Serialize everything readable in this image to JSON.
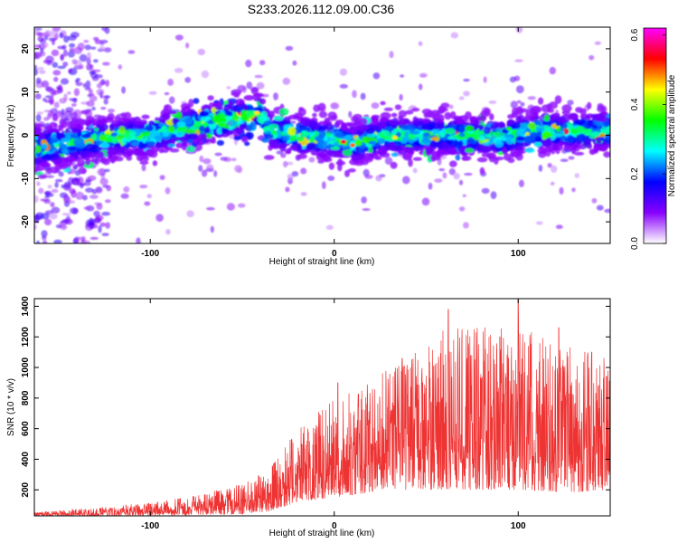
{
  "chart_data": [
    {
      "type": "heatmap",
      "title": "S233.2026.112.09.00.C36",
      "xlabel": "Height of straight line (km)",
      "ylabel": "Frequency (Hz)",
      "xlim": [
        -163,
        150
      ],
      "ylim": [
        -25,
        25
      ],
      "x_ticks": [
        -100,
        0,
        100
      ],
      "x_tick_labels": [
        "-100",
        "0",
        "100"
      ],
      "y_ticks": [
        -20,
        -10,
        0,
        10,
        20
      ],
      "y_tick_labels": [
        "-20",
        "-10",
        "0",
        "10",
        "20"
      ],
      "colorbar": {
        "label": "Normalized spectral amplitude",
        "range": [
          0,
          0.62
        ],
        "ticks": [
          0.0,
          0.2,
          0.4,
          0.6
        ],
        "tick_labels": [
          "0.0",
          "0.2",
          "0.4",
          "0.6"
        ],
        "colors": [
          "#ffffff",
          "#8800ff",
          "#0000ff",
          "#00ffff",
          "#00ff00",
          "#ffff00",
          "#ff0000",
          "#ff00ff"
        ]
      },
      "ridge": [
        {
          "x": -160,
          "y": -3
        },
        {
          "x": -130,
          "y": -1
        },
        {
          "x": -100,
          "y": 0
        },
        {
          "x": -80,
          "y": 2
        },
        {
          "x": -60,
          "y": 3.5
        },
        {
          "x": -40,
          "y": 5
        },
        {
          "x": -35,
          "y": 1
        },
        {
          "x": -20,
          "y": 0
        },
        {
          "x": 0,
          "y": -1
        },
        {
          "x": 10,
          "y": -2
        },
        {
          "x": 30,
          "y": 0
        },
        {
          "x": 60,
          "y": 0
        },
        {
          "x": 90,
          "y": -0.5
        },
        {
          "x": 110,
          "y": 1
        },
        {
          "x": 150,
          "y": 1
        }
      ],
      "grid": false
    },
    {
      "type": "line",
      "xlabel": "Height of straight line (km)",
      "ylabel": "SNR (10 * v/v)",
      "xlim": [
        -163,
        150
      ],
      "ylim": [
        30,
        1450
      ],
      "x_ticks": [
        -100,
        0,
        100
      ],
      "x_tick_labels": [
        "-100",
        "0",
        "100"
      ],
      "y_ticks": [
        200,
        400,
        600,
        800,
        1000,
        1200,
        1400
      ],
      "y_tick_labels": [
        "200",
        "400",
        "600",
        "800",
        "1000",
        "1200",
        "1400"
      ],
      "line_color": "#ee3333",
      "envelope": [
        {
          "x": -163,
          "low": 30,
          "high": 60
        },
        {
          "x": -120,
          "low": 30,
          "high": 90
        },
        {
          "x": -80,
          "low": 35,
          "high": 150
        },
        {
          "x": -50,
          "low": 40,
          "high": 240
        },
        {
          "x": -35,
          "low": 60,
          "high": 350
        },
        {
          "x": -20,
          "low": 120,
          "high": 600
        },
        {
          "x": 0,
          "low": 150,
          "high": 800
        },
        {
          "x": 30,
          "low": 200,
          "high": 1000
        },
        {
          "x": 60,
          "low": 200,
          "high": 1250
        },
        {
          "x": 100,
          "low": 200,
          "high": 1300
        },
        {
          "x": 130,
          "low": 180,
          "high": 1150
        },
        {
          "x": 150,
          "low": 200,
          "high": 1050
        }
      ],
      "peaks": [
        {
          "x": 62,
          "y": 1380
        },
        {
          "x": 100,
          "y": 1450
        },
        {
          "x": 76,
          "y": 1250
        },
        {
          "x": 122,
          "y": 1260
        },
        {
          "x": 90,
          "y": 1200
        },
        {
          "x": 140,
          "y": 1100
        },
        {
          "x": 37,
          "y": 1060
        },
        {
          "x": 2,
          "y": 900
        }
      ],
      "grid": false
    }
  ]
}
